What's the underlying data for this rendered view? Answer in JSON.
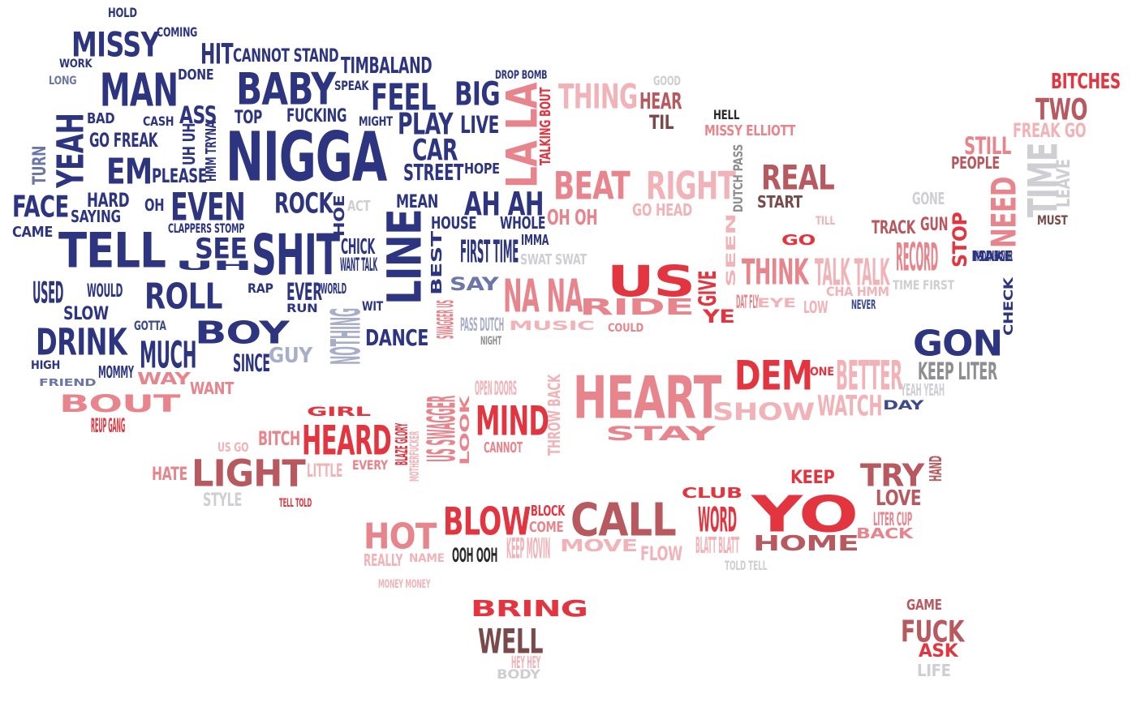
{
  "palette": {
    "deep_blue": "#2d3580",
    "blue": "#3d4a8e",
    "muted_blue": "#6d76a8",
    "pale_blue": "#a9aec8",
    "grey": "#8e8e92",
    "light_grey": "#cfcfd3",
    "red": "#e2353f",
    "rose": "#e8848c",
    "light_rose": "#f1b3b8",
    "dark_rose": "#b8585f",
    "brown": "#7a4a4a"
  },
  "words": [
    {
      "text": "HOLD",
      "color": "#2d3580"
    },
    {
      "text": "MISSY",
      "color": "#2d3580"
    },
    {
      "text": "COMING",
      "color": "#2d3580"
    },
    {
      "text": "WORK",
      "color": "#2d3580"
    },
    {
      "text": "LONG",
      "color": "#6d76a8"
    },
    {
      "text": "MAN",
      "color": "#2d3580"
    },
    {
      "text": "DONE",
      "color": "#2d3580"
    },
    {
      "text": "HIT",
      "color": "#2d3580"
    },
    {
      "text": "CANNOT STAND",
      "color": "#2d3580"
    },
    {
      "text": "TIMBALAND",
      "color": "#2d3580"
    },
    {
      "text": "BABY",
      "color": "#2d3580"
    },
    {
      "text": "SPEAK",
      "color": "#2d3580"
    },
    {
      "text": "FEEL",
      "color": "#2d3580"
    },
    {
      "text": "BIG",
      "color": "#2d3580"
    },
    {
      "text": "DROP BOMB",
      "color": "#2d3580"
    },
    {
      "text": "LA LA",
      "color": "#e8848c"
    },
    {
      "text": "TALKING BOUT",
      "color": "#e2353f"
    },
    {
      "text": "THING",
      "color": "#f1b3b8"
    },
    {
      "text": "GOOD",
      "color": "#cfcfd3"
    },
    {
      "text": "HEAR",
      "color": "#b8585f"
    },
    {
      "text": "TIL",
      "color": "#7a4a4a"
    },
    {
      "text": "HELL",
      "color": "#2a2a2a"
    },
    {
      "text": "MISSY ELLIOTT",
      "color": "#e8848c"
    },
    {
      "text": "BITCHES",
      "color": "#e2353f"
    },
    {
      "text": "TWO",
      "color": "#b8585f"
    },
    {
      "text": "FREAK GO",
      "color": "#f1b3b8"
    },
    {
      "text": "YEAH",
      "color": "#2d3580"
    },
    {
      "text": "BAD",
      "color": "#2d3580"
    },
    {
      "text": "CASH",
      "color": "#2d3580"
    },
    {
      "text": "ASS",
      "color": "#2d3580"
    },
    {
      "text": "TOP",
      "color": "#2d3580"
    },
    {
      "text": "FUCKING",
      "color": "#2d3580"
    },
    {
      "text": "MIGHT",
      "color": "#2d3580"
    },
    {
      "text": "PLAY",
      "color": "#2d3580"
    },
    {
      "text": "LIVE",
      "color": "#2d3580"
    },
    {
      "text": "NIGGA",
      "color": "#2d3580"
    },
    {
      "text": "GO FREAK",
      "color": "#2d3580"
    },
    {
      "text": "UH UH",
      "color": "#2d3580"
    },
    {
      "text": "HMM TRYNA",
      "color": "#2d3580"
    },
    {
      "text": "CAR",
      "color": "#2d3580"
    },
    {
      "text": "STREET",
      "color": "#2d3580"
    },
    {
      "text": "HOPE",
      "color": "#2d3580"
    },
    {
      "text": "TURN",
      "color": "#6d76a8"
    },
    {
      "text": "EM",
      "color": "#2d3580"
    },
    {
      "text": "PLEASE",
      "color": "#2d3580"
    },
    {
      "text": "STILL",
      "color": "#e8848c"
    },
    {
      "text": "PEOPLE",
      "color": "#b8585f"
    },
    {
      "text": "TIME",
      "color": "#cfcfd3"
    },
    {
      "text": "LEAVE",
      "color": "#cfcfd3"
    },
    {
      "text": "BEAT",
      "color": "#e8848c"
    },
    {
      "text": "RIGHT",
      "color": "#f1b3b8"
    },
    {
      "text": "DUTCH PASS",
      "color": "#8e8e92"
    },
    {
      "text": "REAL",
      "color": "#b8585f"
    },
    {
      "text": "START",
      "color": "#7a4a4a"
    },
    {
      "text": "GONE",
      "color": "#cfcfd3"
    },
    {
      "text": "NEED",
      "color": "#e8848c"
    },
    {
      "text": "FACE",
      "color": "#2d3580"
    },
    {
      "text": "HARD",
      "color": "#2d3580"
    },
    {
      "text": "SAYING",
      "color": "#2d3580"
    },
    {
      "text": "OH",
      "color": "#2d3580"
    },
    {
      "text": "EVEN",
      "color": "#2d3580"
    },
    {
      "text": "ROCK",
      "color": "#2d3580"
    },
    {
      "text": "HOE",
      "color": "#2d3580"
    },
    {
      "text": "ACT",
      "color": "#cfcfd3"
    },
    {
      "text": "MEAN",
      "color": "#2d3580"
    },
    {
      "text": "AH AH",
      "color": "#2d3580"
    },
    {
      "text": "OH OH",
      "color": "#e8848c"
    },
    {
      "text": "GO HEAD",
      "color": "#f1b3b8"
    },
    {
      "text": "MUST",
      "color": "#7a4a4a"
    },
    {
      "text": "CAME",
      "color": "#2d3580"
    },
    {
      "text": "CLAPPERS STOMP",
      "color": "#2d3580"
    },
    {
      "text": "HOUSE",
      "color": "#2d3580"
    },
    {
      "text": "WHOLE",
      "color": "#2d3580"
    },
    {
      "text": "TILL",
      "color": "#f1b3b8"
    },
    {
      "text": "TRACK",
      "color": "#b8585f"
    },
    {
      "text": "GUN",
      "color": "#b8585f"
    },
    {
      "text": "STOP",
      "color": "#e2353f"
    },
    {
      "text": "MAKE",
      "color": "#2d3580"
    },
    {
      "text": "TELL",
      "color": "#2d3580"
    },
    {
      "text": "SEE",
      "color": "#2d3580"
    },
    {
      "text": "SHIT",
      "color": "#2d3580"
    },
    {
      "text": "LINE",
      "color": "#2d3580"
    },
    {
      "text": "CHICK",
      "color": "#2d3580"
    },
    {
      "text": "WANT TALK",
      "color": "#2d3580"
    },
    {
      "text": "BEST",
      "color": "#2d3580"
    },
    {
      "text": "IMMA",
      "color": "#2d3580"
    },
    {
      "text": "FIRST TIME",
      "color": "#2d3580"
    },
    {
      "text": "SWAT SWAT",
      "color": "#cfcfd3"
    },
    {
      "text": "SEEN",
      "color": "#f1b3b8"
    },
    {
      "text": "GO",
      "color": "#e2353f"
    },
    {
      "text": "RECORD",
      "color": "#e8848c"
    },
    {
      "text": "MISDEMEANOR",
      "color": "#2d3580"
    },
    {
      "text": "UH",
      "color": "#2d3580"
    },
    {
      "text": "USED",
      "color": "#2d3580"
    },
    {
      "text": "WOULD",
      "color": "#2d3580"
    },
    {
      "text": "ROLL",
      "color": "#2d3580"
    },
    {
      "text": "RAP",
      "color": "#2d3580"
    },
    {
      "text": "EVER",
      "color": "#2d3580"
    },
    {
      "text": "WORLD",
      "color": "#2d3580"
    },
    {
      "text": "SAY",
      "color": "#6d76a8"
    },
    {
      "text": "NA NA",
      "color": "#e8848c"
    },
    {
      "text": "US",
      "color": "#e2353f"
    },
    {
      "text": "GIVE",
      "color": "#e2353f"
    },
    {
      "text": "THINK",
      "color": "#e8848c"
    },
    {
      "text": "TALK TALK",
      "color": "#f1b3b8"
    },
    {
      "text": "CHA HMM",
      "color": "#f1b3b8"
    },
    {
      "text": "TIME FIRST",
      "color": "#cfcfd3"
    },
    {
      "text": "CHECK",
      "color": "#2d3580"
    },
    {
      "text": "SLOW",
      "color": "#2d3580"
    },
    {
      "text": "RUN",
      "color": "#2d3580"
    },
    {
      "text": "WIT",
      "color": "#2d3580"
    },
    {
      "text": "SWAGGER US",
      "color": "#e8848c"
    },
    {
      "text": "RIDE",
      "color": "#e8848c"
    },
    {
      "text": "YE",
      "color": "#e2353f"
    },
    {
      "text": "DAT FLY",
      "color": "#e8848c"
    },
    {
      "text": "EYE",
      "color": "#f1b3b8"
    },
    {
      "text": "LOW",
      "color": "#f1b3b8"
    },
    {
      "text": "NEVER",
      "color": "#3d4a8e"
    },
    {
      "text": "DRINK",
      "color": "#2d3580"
    },
    {
      "text": "GOTTA",
      "color": "#3d4a8e"
    },
    {
      "text": "BOY",
      "color": "#2d3580"
    },
    {
      "text": "NOTHING",
      "color": "#a9aec8"
    },
    {
      "text": "DANCE",
      "color": "#2d3580"
    },
    {
      "text": "PASS DUTCH",
      "color": "#a9aec8"
    },
    {
      "text": "MUSIC",
      "color": "#f1b3b8"
    },
    {
      "text": "COULD",
      "color": "#e8848c"
    },
    {
      "text": "GON",
      "color": "#2d3580"
    },
    {
      "text": "MUCH",
      "color": "#2d3580"
    },
    {
      "text": "GUY",
      "color": "#a9aec8"
    },
    {
      "text": "NIGHT",
      "color": "#8e8e92"
    },
    {
      "text": "HIGH",
      "color": "#2d3580"
    },
    {
      "text": "SINCE",
      "color": "#2d3580"
    },
    {
      "text": "MOMMY",
      "color": "#2d3580"
    },
    {
      "text": "WAY",
      "color": "#e8848c"
    },
    {
      "text": "DEM",
      "color": "#e2353f"
    },
    {
      "text": "ONE",
      "color": "#e2353f"
    },
    {
      "text": "BETTER",
      "color": "#f1b3b8"
    },
    {
      "text": "KEEP LITER",
      "color": "#8e8e92"
    },
    {
      "text": "FRIEND",
      "color": "#6d76a8"
    },
    {
      "text": "WANT",
      "color": "#e8848c"
    },
    {
      "text": "HEART",
      "color": "#e8848c"
    },
    {
      "text": "YEAH YEAH",
      "color": "#cfcfd3"
    },
    {
      "text": "BOUT",
      "color": "#e8848c"
    },
    {
      "text": "OPEN DOORS",
      "color": "#f1b3b8"
    },
    {
      "text": "THROW BACK",
      "color": "#f1b3b8"
    },
    {
      "text": "SHOW",
      "color": "#f1b3b8"
    },
    {
      "text": "WATCH",
      "color": "#f1b3b8"
    },
    {
      "text": "DAY",
      "color": "#3d4a8e"
    },
    {
      "text": "REUP GANG",
      "color": "#e2353f"
    },
    {
      "text": "GIRL",
      "color": "#e2353f"
    },
    {
      "text": "US SWAGGER",
      "color": "#e8848c"
    },
    {
      "text": "LOOK",
      "color": "#e8848c"
    },
    {
      "text": "MIND",
      "color": "#e2353f"
    },
    {
      "text": "BITCH",
      "color": "#e8848c"
    },
    {
      "text": "HEARD",
      "color": "#e2353f"
    },
    {
      "text": "BLAZE GLORY",
      "color": "#e2353f"
    },
    {
      "text": "MOTHERFUCKER",
      "color": "#f1b3b8"
    },
    {
      "text": "STAY",
      "color": "#e8848c"
    },
    {
      "text": "US GO",
      "color": "#f1b3b8"
    },
    {
      "text": "CANNOT",
      "color": "#e8848c"
    },
    {
      "text": "LIGHT",
      "color": "#b8585f"
    },
    {
      "text": "HATE",
      "color": "#e8848c"
    },
    {
      "text": "LITTLE",
      "color": "#f1b3b8"
    },
    {
      "text": "EVERY",
      "color": "#e8848c"
    },
    {
      "text": "KEEP",
      "color": "#e2353f"
    },
    {
      "text": "TRY",
      "color": "#b8585f"
    },
    {
      "text": "HAND",
      "color": "#b8585f"
    },
    {
      "text": "STYLE",
      "color": "#cfcfd3"
    },
    {
      "text": "TELL TOLD",
      "color": "#e2353f"
    },
    {
      "text": "CLUB",
      "color": "#e2353f"
    },
    {
      "text": "LOVE",
      "color": "#b8585f"
    },
    {
      "text": "YO",
      "color": "#e2353f"
    },
    {
      "text": "WORD",
      "color": "#e2353f"
    },
    {
      "text": "LITER CUP",
      "color": "#e8848c"
    },
    {
      "text": "BACK",
      "color": "#e8848c"
    },
    {
      "text": "BLOW",
      "color": "#e2353f"
    },
    {
      "text": "BLOCK",
      "color": "#e2353f"
    },
    {
      "text": "COME",
      "color": "#e8848c"
    },
    {
      "text": "CALL",
      "color": "#b8585f"
    },
    {
      "text": "HOT",
      "color": "#e8848c"
    },
    {
      "text": "KEEP MOVIN",
      "color": "#f1b3b8"
    },
    {
      "text": "MOVE",
      "color": "#f1b3b8"
    },
    {
      "text": "FLOW",
      "color": "#f1b3b8"
    },
    {
      "text": "BLATT BLATT",
      "color": "#f1b3b8"
    },
    {
      "text": "HOME",
      "color": "#b8585f"
    },
    {
      "text": "REALLY",
      "color": "#f1b3b8"
    },
    {
      "text": "NAME",
      "color": "#f1b3b8"
    },
    {
      "text": "OOH OOH",
      "color": "#2a2a2a"
    },
    {
      "text": "TOLD TELL",
      "color": "#cfcfd3"
    },
    {
      "text": "MONEY MONEY",
      "color": "#f1b3b8"
    },
    {
      "text": "BRING",
      "color": "#e2353f"
    },
    {
      "text": "GAME",
      "color": "#b8585f"
    },
    {
      "text": "FUCK",
      "color": "#b8585f"
    },
    {
      "text": "WELL",
      "color": "#7a4a4a"
    },
    {
      "text": "ASK",
      "color": "#e2353f"
    },
    {
      "text": "HEY HEY",
      "color": "#f1b3b8"
    },
    {
      "text": "BODY",
      "color": "#cfcfd3"
    },
    {
      "text": "LIFE",
      "color": "#cfcfd3"
    }
  ]
}
